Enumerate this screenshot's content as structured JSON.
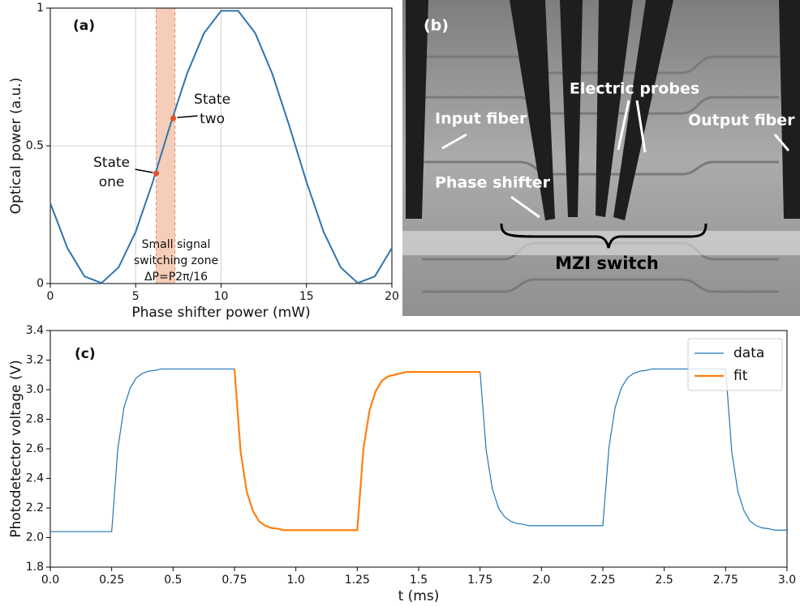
{
  "chart_data": [
    {
      "type": "line",
      "label": "(a)",
      "xlabel": "Phase shifter power (mW)",
      "ylabel": "Optical power (a.u.)",
      "x": [
        0,
        1,
        2,
        3,
        4,
        5,
        6,
        7,
        8,
        9,
        10,
        11,
        12,
        13,
        14,
        15,
        16,
        17,
        18,
        19,
        20
      ],
      "values": [
        0.292,
        0.129,
        0.026,
        0.002,
        0.059,
        0.188,
        0.369,
        0.571,
        0.761,
        0.909,
        0.99,
        0.99,
        0.909,
        0.761,
        0.571,
        0.369,
        0.188,
        0.059,
        0.002,
        0.026,
        0.129
      ],
      "color": "#2e75b0",
      "xlim": [
        0,
        20
      ],
      "ylim": [
        0,
        1
      ],
      "xticks": [
        0,
        5,
        10,
        15,
        20
      ],
      "yticks": [
        0,
        0.5,
        1
      ],
      "grid": true,
      "span": [
        6.2,
        7.3
      ],
      "span_color": "#f6cdb8",
      "span_annotation": [
        "Small signal",
        "switching zone",
        "ΔP=P2π/16"
      ],
      "markers": [
        {
          "x": 6.2,
          "y": 0.4,
          "label": [
            "State",
            "one"
          ]
        },
        {
          "x": 7.2,
          "y": 0.6,
          "label": [
            "State",
            "two"
          ]
        }
      ],
      "marker_color": "#e0522a"
    },
    {
      "type": "image",
      "label": "(b)",
      "annotations": [
        "Electric probes",
        "Input fiber",
        "Output fiber",
        "Phase shifter",
        "MZI switch"
      ]
    },
    {
      "type": "line",
      "label": "(c)",
      "xlabel": "t (ms)",
      "ylabel": "Photodetector voltage (V)",
      "x": [
        0,
        0.025,
        0.05,
        0.075,
        0.1,
        0.125,
        0.15,
        0.175,
        0.2,
        0.225,
        0.25,
        0.275,
        0.3,
        0.325,
        0.35,
        0.375,
        0.4,
        0.425,
        0.45,
        0.475,
        0.5,
        0.525,
        0.55,
        0.575,
        0.6,
        0.625,
        0.65,
        0.675,
        0.7,
        0.725,
        0.75,
        0.775,
        0.8,
        0.825,
        0.85,
        0.875,
        0.9,
        0.925,
        0.95,
        0.975,
        1,
        1.025,
        1.05,
        1.075,
        1.1,
        1.125,
        1.15,
        1.175,
        1.2,
        1.225,
        1.25,
        1.275,
        1.3,
        1.325,
        1.35,
        1.375,
        1.4,
        1.425,
        1.45,
        1.475,
        1.5,
        1.525,
        1.55,
        1.575,
        1.6,
        1.625,
        1.65,
        1.675,
        1.7,
        1.725,
        1.75,
        1.775,
        1.8,
        1.825,
        1.85,
        1.875,
        1.9,
        1.925,
        1.95,
        1.975,
        2,
        2.025,
        2.05,
        2.075,
        2.1,
        2.125,
        2.15,
        2.175,
        2.2,
        2.225,
        2.25,
        2.275,
        2.3,
        2.325,
        2.35,
        2.375,
        2.4,
        2.425,
        2.45,
        2.475,
        2.5,
        2.525,
        2.55,
        2.575,
        2.6,
        2.625,
        2.65,
        2.675,
        2.7,
        2.725,
        2.75,
        2.775,
        2.8,
        2.825,
        2.85,
        2.875,
        2.9,
        2.925,
        2.95,
        2.975,
        3
      ],
      "series": [
        {
          "name": "data",
          "color": "#1f77b4",
          "values": [
            2.04,
            2.04,
            2.04,
            2.04,
            2.04,
            2.04,
            2.04,
            2.04,
            2.04,
            2.04,
            2.04,
            2.6,
            2.88,
            3.01,
            3.08,
            3.11,
            3.125,
            3.13,
            3.14,
            3.14,
            3.14,
            3.14,
            3.14,
            3.14,
            3.14,
            3.14,
            3.14,
            3.14,
            3.14,
            3.14,
            3.14,
            2.58,
            2.31,
            2.18,
            2.11,
            2.08,
            2.065,
            2.06,
            2.05,
            2.05,
            2.05,
            2.05,
            2.05,
            2.05,
            2.05,
            2.05,
            2.05,
            2.05,
            2.05,
            2.05,
            2.05,
            2.6,
            2.86,
            2.99,
            3.06,
            3.09,
            3.1,
            3.11,
            3.12,
            3.12,
            3.12,
            3.12,
            3.12,
            3.12,
            3.12,
            3.12,
            3.12,
            3.12,
            3.12,
            3.12,
            3.12,
            2.59,
            2.33,
            2.2,
            2.14,
            2.11,
            2.095,
            2.09,
            2.08,
            2.08,
            2.08,
            2.08,
            2.08,
            2.08,
            2.08,
            2.08,
            2.08,
            2.08,
            2.08,
            2.08,
            2.08,
            2.61,
            2.88,
            3.01,
            3.08,
            3.11,
            3.125,
            3.13,
            3.14,
            3.14,
            3.14,
            3.14,
            3.14,
            3.14,
            3.14,
            3.14,
            3.14,
            3.14,
            3.14,
            3.14,
            3.14,
            2.58,
            2.31,
            2.18,
            2.11,
            2.08,
            2.065,
            2.06,
            2.05,
            2.05,
            2.05
          ]
        },
        {
          "name": "fit",
          "color": "#ff7f0e",
          "values": [
            null,
            null,
            null,
            null,
            null,
            null,
            null,
            null,
            null,
            null,
            null,
            null,
            null,
            null,
            null,
            null,
            null,
            null,
            null,
            null,
            null,
            null,
            null,
            null,
            null,
            null,
            null,
            null,
            null,
            null,
            3.14,
            2.58,
            2.31,
            2.18,
            2.11,
            2.08,
            2.065,
            2.06,
            2.05,
            2.05,
            2.05,
            2.05,
            2.05,
            2.05,
            2.05,
            2.05,
            2.05,
            2.05,
            2.05,
            2.05,
            2.05,
            2.6,
            2.86,
            2.99,
            3.06,
            3.09,
            3.1,
            3.11,
            3.12,
            3.12,
            3.12,
            3.12,
            3.12,
            3.12,
            3.12,
            3.12,
            3.12,
            3.12,
            3.12,
            3.12,
            3.12,
            null,
            null,
            null,
            null,
            null,
            null,
            null,
            null,
            null,
            null,
            null,
            null,
            null,
            null,
            null,
            null,
            null,
            null,
            null,
            null,
            null,
            null,
            null,
            null,
            null,
            null,
            null,
            null,
            null,
            null,
            null,
            null,
            null,
            null,
            null,
            null,
            null,
            null,
            null,
            null,
            null,
            null,
            null,
            null,
            null,
            null,
            null,
            null,
            null,
            null
          ]
        }
      ],
      "xlim": [
        0,
        3
      ],
      "ylim": [
        1.8,
        3.4
      ],
      "xticks": [
        {
          "value": 0,
          "label": "0.0"
        },
        0.25,
        0.5,
        0.75,
        {
          "value": 1,
          "label": "1.0"
        },
        1.25,
        1.5,
        1.75,
        {
          "value": 2,
          "label": "2.0"
        },
        2.25,
        2.5,
        2.75,
        {
          "value": 3,
          "label": "3.0"
        }
      ],
      "yticks": [
        1.8,
        {
          "value": 2,
          "label": "2.0"
        },
        2.2,
        2.4,
        2.6,
        2.8,
        {
          "value": 3,
          "label": "3.0"
        },
        3.2,
        3.4
      ],
      "grid": false,
      "legend": "upper right"
    }
  ]
}
